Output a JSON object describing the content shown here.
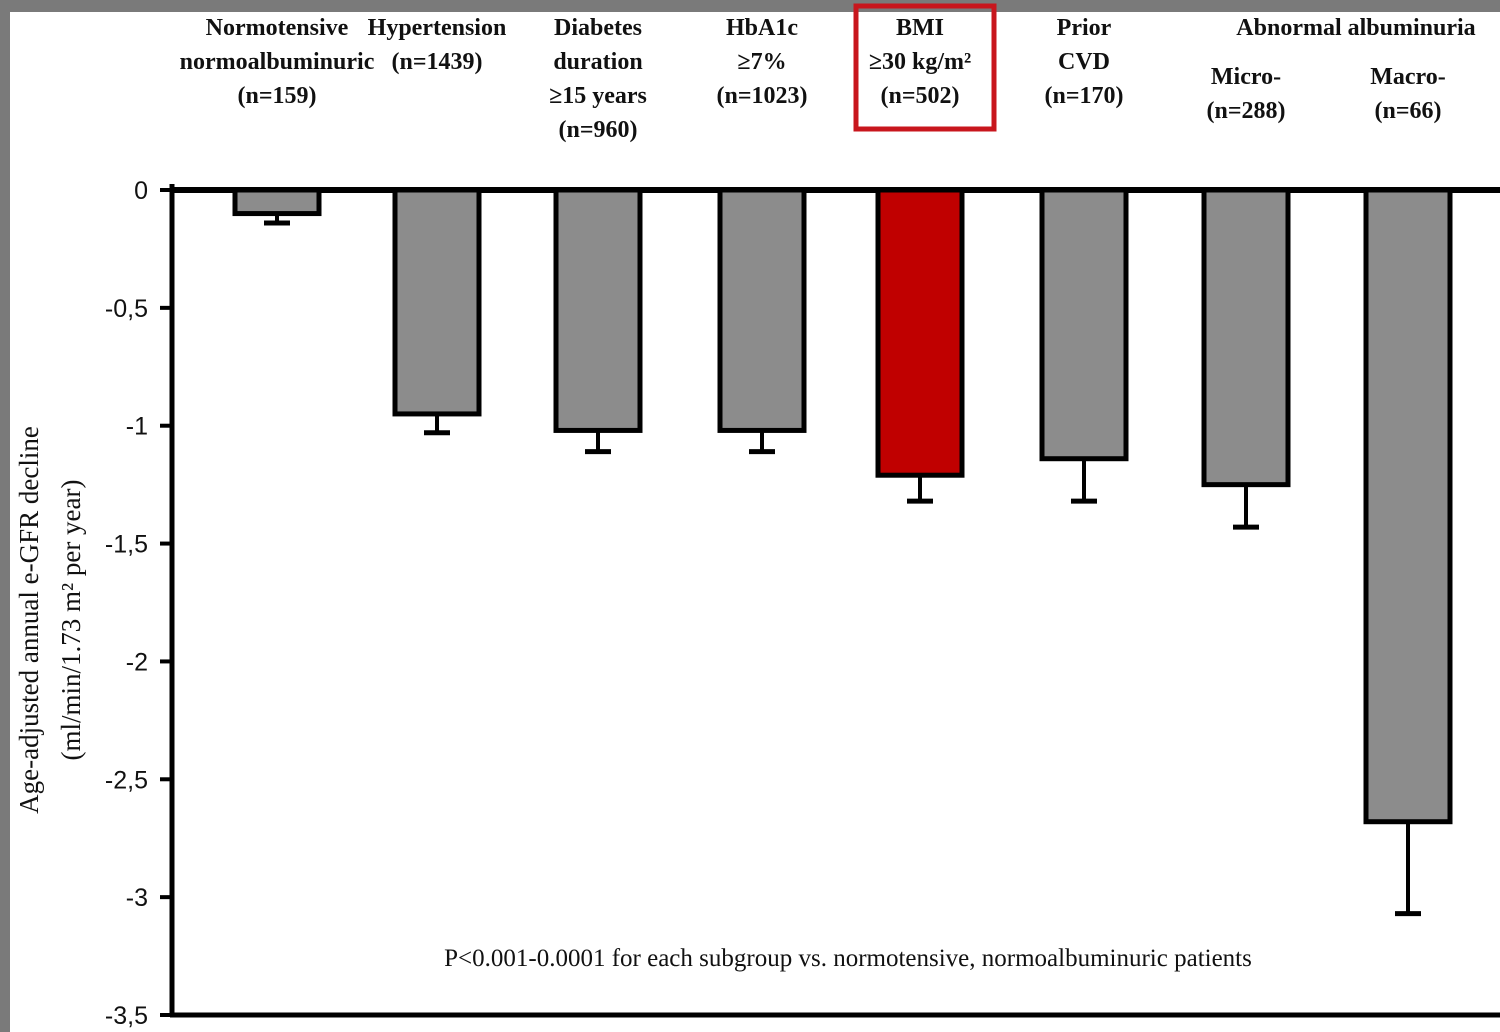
{
  "chart_data": {
    "type": "bar",
    "categories": [
      {
        "lines": [
          "Normotensive",
          "normoalbuminuric",
          "(n=159)"
        ]
      },
      {
        "lines": [
          "Hypertension",
          "(n=1439)"
        ]
      },
      {
        "lines": [
          "Diabetes",
          "duration",
          "≥15 years",
          "(n=960)"
        ]
      },
      {
        "lines": [
          "HbA1c",
          "≥7%",
          "(n=1023)"
        ]
      },
      {
        "lines": [
          "BMI",
          "≥30 kg/m²",
          "(n=502)"
        ],
        "highlight": true
      },
      {
        "lines": [
          "Prior",
          "CVD",
          "(n=170)"
        ]
      },
      {
        "lines": [
          "Micro-",
          "(n=288)"
        ]
      },
      {
        "lines": [
          "Macro-",
          "(n=66)"
        ]
      }
    ],
    "group_header": "Abnormal albuminuria",
    "values": [
      -0.1,
      -0.95,
      -1.02,
      -1.02,
      -1.21,
      -1.14,
      -1.25,
      -2.68
    ],
    "error": [
      0.04,
      0.08,
      0.09,
      0.09,
      0.11,
      0.18,
      0.18,
      0.39
    ],
    "ylabel_line1": "Age-adjusted annual e-GFR decline",
    "ylabel_line2": "(ml/min/1.73 m² per year)",
    "ylim": [
      -3.5,
      0
    ],
    "yticks": [
      0,
      -0.5,
      -1,
      -1.5,
      -2,
      -2.5,
      -3,
      -3.5
    ],
    "ytick_labels": [
      "0",
      "-0,5",
      "-1",
      "-1,5",
      "-2",
      "-2,5",
      "-3",
      "-3,5"
    ],
    "annotation": "P<0.001-0.0001 for each subgroup vs. normotensive, normoalbuminuric patients",
    "colors": {
      "bar": "#8c8c8c",
      "highlight_bar": "#c00000",
      "highlight_box": "#c8161d"
    }
  }
}
